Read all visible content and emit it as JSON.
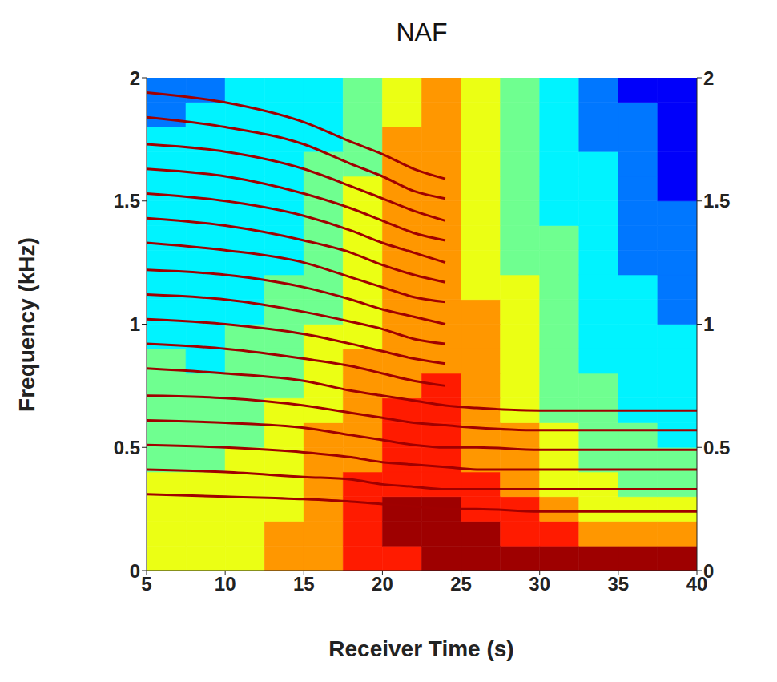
{
  "chart_data": {
    "type": "heatmap",
    "title": "NAF",
    "x_label": "Receiver Time (s)",
    "y_label": "Frequency (kHz)",
    "xlim": [
      5,
      40
    ],
    "xticks": [
      5,
      10,
      15,
      20,
      25,
      30,
      35,
      40
    ],
    "ylim": [
      0,
      2
    ],
    "yticks": [
      0,
      0.5,
      1,
      1.5,
      2
    ],
    "y2lim": [
      0,
      2
    ],
    "y2ticks": [
      0,
      0.5,
      1,
      1.5,
      2
    ],
    "grid": false,
    "x_edges": [
      5,
      7.5,
      10,
      12.5,
      15,
      17.5,
      20,
      22.5,
      25,
      27.5,
      30,
      32.5,
      35,
      37.5,
      40
    ],
    "y_edges": [
      0,
      0.1,
      0.2,
      0.3,
      0.4,
      0.5,
      0.6,
      0.7,
      0.8,
      0.9,
      1.0,
      1.1,
      1.2,
      1.3,
      1.4,
      1.5,
      1.6,
      1.7,
      1.8,
      1.9,
      2.0
    ],
    "cells": [
      [
        6,
        6,
        6,
        7,
        7,
        8,
        8,
        9,
        9,
        9,
        9,
        9,
        9,
        9
      ],
      [
        6,
        6,
        6,
        7,
        7,
        8,
        9,
        9,
        9,
        8,
        8,
        7,
        7,
        7
      ],
      [
        6,
        6,
        6,
        6,
        7,
        8,
        9,
        9,
        8,
        8,
        7,
        6,
        6,
        6
      ],
      [
        6,
        6,
        6,
        6,
        7,
        8,
        8,
        8,
        8,
        7,
        6,
        6,
        5,
        5
      ],
      [
        5,
        5,
        6,
        6,
        7,
        7,
        8,
        8,
        7,
        7,
        6,
        5,
        5,
        5
      ],
      [
        5,
        5,
        5,
        6,
        7,
        7,
        8,
        8,
        7,
        7,
        6,
        5,
        5,
        4
      ],
      [
        5,
        5,
        5,
        6,
        6,
        7,
        8,
        8,
        7,
        6,
        5,
        5,
        4,
        4
      ],
      [
        5,
        5,
        5,
        5,
        6,
        7,
        7,
        8,
        7,
        6,
        5,
        5,
        4,
        4
      ],
      [
        5,
        4,
        5,
        5,
        6,
        7,
        7,
        7,
        7,
        6,
        5,
        4,
        4,
        4
      ],
      [
        4,
        4,
        5,
        5,
        6,
        6,
        7,
        7,
        7,
        6,
        5,
        4,
        4,
        4
      ],
      [
        4,
        4,
        4,
        5,
        5,
        6,
        7,
        7,
        7,
        6,
        5,
        4,
        4,
        3
      ],
      [
        4,
        4,
        4,
        5,
        5,
        6,
        7,
        7,
        6,
        6,
        5,
        4,
        4,
        3
      ],
      [
        4,
        4,
        4,
        4,
        5,
        6,
        7,
        7,
        6,
        5,
        5,
        4,
        3,
        3
      ],
      [
        4,
        4,
        4,
        4,
        5,
        6,
        7,
        7,
        6,
        5,
        5,
        4,
        3,
        3
      ],
      [
        4,
        4,
        4,
        4,
        5,
        6,
        7,
        7,
        6,
        5,
        4,
        4,
        3,
        3
      ],
      [
        4,
        4,
        4,
        4,
        5,
        6,
        7,
        7,
        6,
        5,
        4,
        4,
        3,
        2
      ],
      [
        4,
        4,
        4,
        4,
        5,
        5,
        7,
        7,
        6,
        5,
        4,
        4,
        3,
        2
      ],
      [
        4,
        4,
        4,
        4,
        4,
        5,
        7,
        7,
        6,
        5,
        4,
        3,
        3,
        2
      ],
      [
        3,
        4,
        4,
        4,
        4,
        5,
        6,
        7,
        6,
        5,
        4,
        3,
        3,
        2
      ],
      [
        3,
        3,
        4,
        4,
        4,
        5,
        6,
        7,
        6,
        5,
        4,
        3,
        2,
        2
      ]
    ],
    "x": [
      5,
      10,
      15,
      18,
      20,
      22,
      24,
      26,
      30,
      35,
      40
    ],
    "line_style": "solid",
    "series": [
      {
        "color": "#a00000",
        "values": [
          0.31,
          0.3,
          0.29,
          0.28,
          0.27,
          0.26,
          0.25,
          0.25,
          0.24,
          0.24,
          0.24
        ]
      },
      {
        "color": "#a00000",
        "values": [
          0.41,
          0.4,
          0.38,
          0.37,
          0.35,
          0.34,
          0.33,
          0.33,
          0.33,
          0.33,
          0.33
        ]
      },
      {
        "color": "#a00000",
        "values": [
          0.51,
          0.5,
          0.48,
          0.46,
          0.44,
          0.43,
          0.42,
          0.41,
          0.41,
          0.41,
          0.41
        ]
      },
      {
        "color": "#a00000",
        "values": [
          0.61,
          0.6,
          0.58,
          0.55,
          0.53,
          0.51,
          0.5,
          0.5,
          0.49,
          0.49,
          0.49
        ]
      },
      {
        "color": "#a00000",
        "values": [
          0.71,
          0.7,
          0.67,
          0.64,
          0.62,
          0.6,
          0.59,
          0.58,
          0.57,
          0.57,
          0.57
        ]
      },
      {
        "color": "#a00000",
        "values": [
          0.82,
          0.8,
          0.77,
          0.73,
          0.71,
          0.69,
          0.67,
          0.66,
          0.65,
          0.65,
          0.65
        ]
      },
      {
        "color": "#a00000",
        "values": [
          0.92,
          0.9,
          0.86,
          0.83,
          0.8,
          0.77,
          0.75,
          null,
          null,
          null,
          null
        ]
      },
      {
        "color": "#a00000",
        "values": [
          1.02,
          1.0,
          0.96,
          0.92,
          0.89,
          0.86,
          0.84,
          null,
          null,
          null,
          null
        ]
      },
      {
        "color": "#a00000",
        "values": [
          1.12,
          1.1,
          1.05,
          1.01,
          0.98,
          0.94,
          0.92,
          null,
          null,
          null,
          null
        ]
      },
      {
        "color": "#a00000",
        "values": [
          1.22,
          1.2,
          1.15,
          1.1,
          1.06,
          1.03,
          1.0,
          null,
          null,
          null,
          null
        ]
      },
      {
        "color": "#a00000",
        "values": [
          1.33,
          1.3,
          1.25,
          1.19,
          1.15,
          1.11,
          1.09,
          null,
          null,
          null,
          null
        ]
      },
      {
        "color": "#a00000",
        "values": [
          1.43,
          1.4,
          1.34,
          1.29,
          1.24,
          1.2,
          1.17,
          null,
          null,
          null,
          null
        ]
      },
      {
        "color": "#a00000",
        "values": [
          1.53,
          1.5,
          1.44,
          1.38,
          1.33,
          1.29,
          1.25,
          null,
          null,
          null,
          null
        ]
      },
      {
        "color": "#a00000",
        "values": [
          1.63,
          1.6,
          1.53,
          1.47,
          1.42,
          1.37,
          1.34,
          null,
          null,
          null,
          null
        ]
      },
      {
        "color": "#a00000",
        "values": [
          1.73,
          1.7,
          1.63,
          1.56,
          1.51,
          1.46,
          1.42,
          null,
          null,
          null,
          null
        ]
      },
      {
        "color": "#a00000",
        "values": [
          1.84,
          1.8,
          1.73,
          1.65,
          1.6,
          1.54,
          1.51,
          null,
          null,
          null,
          null
        ]
      },
      {
        "color": "#a00000",
        "values": [
          1.94,
          1.9,
          1.82,
          1.74,
          1.69,
          1.63,
          1.59,
          null,
          null,
          null,
          null
        ]
      }
    ]
  }
}
